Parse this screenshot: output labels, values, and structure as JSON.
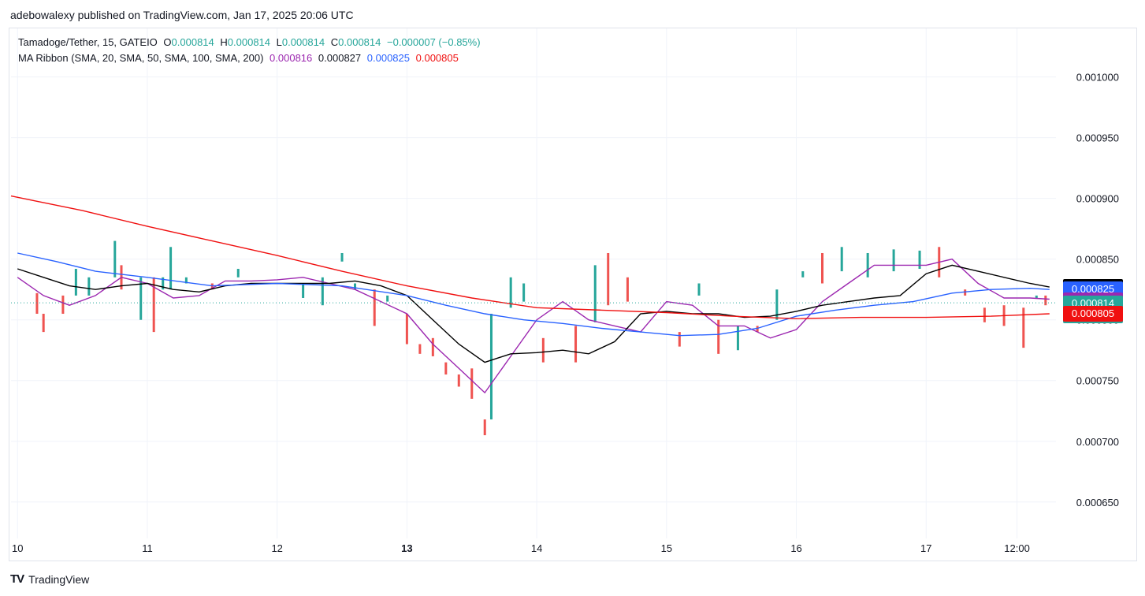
{
  "header": {
    "published": "adebowalexy published on TradingView.com, Jan 17, 2025 20:06 UTC"
  },
  "legend": {
    "symbol": "Tamadoge/Tether, 15, GATEIO",
    "o_label": "O",
    "o": "0.000814",
    "h_label": "H",
    "h": "0.000814",
    "l_label": "L",
    "l": "0.000814",
    "c_label": "C",
    "c": "0.000814",
    "change": "−0.000007 (−0.85%)",
    "ma_label": "MA Ribbon (SMA, 20, SMA, 50, SMA, 100, SMA, 200)",
    "ma20": "0.000816",
    "ma50": "0.000827",
    "ma100": "0.000825",
    "ma200": "0.000805"
  },
  "price_tags": [
    {
      "value": "0.000827",
      "extra": "",
      "color": "#000000",
      "price": 0.000827
    },
    {
      "value": "0.000825",
      "extra": "",
      "color": "#2962ff",
      "price": 0.000825
    },
    {
      "value": "0.000816",
      "extra": "",
      "color": "#9c27b0",
      "price": 0.000816
    },
    {
      "value": "0.000814",
      "extra": "08:10",
      "color": "#26a69a",
      "price": 0.000814
    },
    {
      "value": "0.000805",
      "extra": "",
      "color": "#f01010",
      "price": 0.000805
    }
  ],
  "footer": {
    "brand": "TradingView"
  },
  "colors": {
    "up": "#26a69a",
    "down": "#ef5350",
    "ma20": "#9c27b0",
    "ma50": "#000000",
    "ma100": "#2962ff",
    "ma200": "#f01010",
    "grid": "#f0f3fa"
  },
  "chart_data": {
    "type": "line",
    "title": "Tamadoge/Tether, 15, GATEIO",
    "ylim": [
      0.00062,
      0.00104
    ],
    "y_ticks": [
      "0.001000",
      "0.000950",
      "0.000900",
      "0.000850",
      "0.000800",
      "0.000750",
      "0.000700",
      "0.000650"
    ],
    "x_ticks": [
      "10",
      "11",
      "12",
      "13",
      "14",
      "15",
      "16",
      "17",
      "12:00"
    ],
    "x_tick_pos": [
      0,
      1,
      2,
      3,
      4,
      5,
      6,
      7,
      7.7
    ],
    "x_range": [
      -0.05,
      8.0
    ],
    "grid": true,
    "last_price": 0.000814,
    "series": [
      {
        "name": "SMA 20",
        "x": [
          0,
          0.2,
          0.4,
          0.6,
          0.8,
          1.0,
          1.2,
          1.4,
          1.6,
          1.8,
          2.0,
          2.2,
          2.4,
          2.6,
          2.8,
          3.0,
          3.2,
          3.4,
          3.6,
          3.8,
          4.0,
          4.2,
          4.4,
          4.6,
          4.8,
          5.0,
          5.2,
          5.4,
          5.6,
          5.8,
          6.0,
          6.2,
          6.4,
          6.6,
          6.8,
          7.0,
          7.2,
          7.4,
          7.6,
          7.8,
          7.95
        ],
        "values": [
          0.000835,
          0.00082,
          0.000812,
          0.00082,
          0.000835,
          0.00083,
          0.000818,
          0.00082,
          0.000832,
          0.000832,
          0.000833,
          0.000835,
          0.00083,
          0.000825,
          0.000815,
          0.000805,
          0.00078,
          0.00076,
          0.00074,
          0.00077,
          0.0008,
          0.000815,
          0.0008,
          0.000795,
          0.00079,
          0.000815,
          0.000812,
          0.000795,
          0.000795,
          0.000785,
          0.000792,
          0.000815,
          0.00083,
          0.000845,
          0.000845,
          0.000845,
          0.00085,
          0.00083,
          0.000818,
          0.000818,
          0.000817
        ]
      },
      {
        "name": "SMA 50",
        "x": [
          0,
          0.2,
          0.4,
          0.6,
          0.8,
          1.0,
          1.2,
          1.4,
          1.6,
          1.8,
          2.0,
          2.2,
          2.4,
          2.6,
          2.8,
          3.0,
          3.2,
          3.4,
          3.6,
          3.8,
          4.0,
          4.2,
          4.4,
          4.6,
          4.8,
          5.0,
          5.2,
          5.4,
          5.6,
          5.8,
          6.0,
          6.2,
          6.4,
          6.6,
          6.8,
          7.0,
          7.2,
          7.4,
          7.6,
          7.8,
          7.95
        ],
        "values": [
          0.000842,
          0.000835,
          0.000828,
          0.000825,
          0.000828,
          0.00083,
          0.000825,
          0.000823,
          0.000828,
          0.00083,
          0.00083,
          0.00083,
          0.00083,
          0.000832,
          0.000828,
          0.00082,
          0.0008,
          0.00078,
          0.000765,
          0.000772,
          0.000773,
          0.000775,
          0.000772,
          0.000782,
          0.000805,
          0.000807,
          0.000805,
          0.000805,
          0.000802,
          0.000803,
          0.000807,
          0.000812,
          0.000815,
          0.000818,
          0.00082,
          0.000838,
          0.000845,
          0.00084,
          0.000835,
          0.00083,
          0.000827
        ]
      },
      {
        "name": "SMA 100",
        "x": [
          0,
          0.3,
          0.6,
          1.0,
          1.5,
          2.0,
          2.5,
          3.0,
          3.3,
          3.6,
          3.9,
          4.2,
          4.5,
          4.8,
          5.1,
          5.4,
          5.7,
          6.0,
          6.3,
          6.6,
          6.9,
          7.2,
          7.5,
          7.8,
          7.95
        ],
        "values": [
          0.000855,
          0.000848,
          0.00084,
          0.000835,
          0.000828,
          0.00083,
          0.000828,
          0.00082,
          0.000812,
          0.000805,
          0.0008,
          0.000797,
          0.000793,
          0.00079,
          0.000787,
          0.000788,
          0.000793,
          0.000803,
          0.000808,
          0.000812,
          0.000815,
          0.000822,
          0.000825,
          0.000826,
          0.000825
        ]
      },
      {
        "name": "SMA 200",
        "x": [
          -0.05,
          0.5,
          1.0,
          1.5,
          2.0,
          2.5,
          3.0,
          3.5,
          4.0,
          4.5,
          5.0,
          5.5,
          6.0,
          6.5,
          7.0,
          7.5,
          7.95
        ],
        "values": [
          0.000902,
          0.00089,
          0.000877,
          0.000865,
          0.000853,
          0.00084,
          0.000828,
          0.000818,
          0.00081,
          0.000808,
          0.000806,
          0.000803,
          0.000801,
          0.000802,
          0.000802,
          0.000803,
          0.000805
        ]
      }
    ],
    "candles": [
      {
        "x": 0.15,
        "o": 0.000822,
        "c": 0.000805
      },
      {
        "x": 0.2,
        "o": 0.000805,
        "c": 0.00079
      },
      {
        "x": 0.35,
        "o": 0.00082,
        "c": 0.000805
      },
      {
        "x": 0.45,
        "o": 0.00082,
        "c": 0.000842
      },
      {
        "x": 0.55,
        "o": 0.00082,
        "c": 0.000835
      },
      {
        "x": 0.75,
        "o": 0.000835,
        "c": 0.000865
      },
      {
        "x": 0.8,
        "o": 0.000845,
        "c": 0.000825
      },
      {
        "x": 0.95,
        "o": 0.0008,
        "c": 0.000835
      },
      {
        "x": 1.05,
        "o": 0.000835,
        "c": 0.00079
      },
      {
        "x": 1.12,
        "o": 0.000825,
        "c": 0.000835
      },
      {
        "x": 1.18,
        "o": 0.000825,
        "c": 0.00086
      },
      {
        "x": 1.3,
        "o": 0.00083,
        "c": 0.000835
      },
      {
        "x": 1.5,
        "o": 0.00083,
        "c": 0.000825
      },
      {
        "x": 1.7,
        "o": 0.000835,
        "c": 0.000842
      },
      {
        "x": 2.2,
        "o": 0.000818,
        "c": 0.00083
      },
      {
        "x": 2.35,
        "o": 0.000812,
        "c": 0.000835
      },
      {
        "x": 2.5,
        "o": 0.000848,
        "c": 0.000855
      },
      {
        "x": 2.6,
        "o": 0.000825,
        "c": 0.00083
      },
      {
        "x": 2.75,
        "o": 0.000825,
        "c": 0.000795
      },
      {
        "x": 2.85,
        "o": 0.000815,
        "c": 0.00082
      },
      {
        "x": 3.0,
        "o": 0.000805,
        "c": 0.00078
      },
      {
        "x": 3.1,
        "o": 0.00078,
        "c": 0.000772
      },
      {
        "x": 3.2,
        "o": 0.000785,
        "c": 0.00077
      },
      {
        "x": 3.3,
        "o": 0.000765,
        "c": 0.000755
      },
      {
        "x": 3.4,
        "o": 0.000755,
        "c": 0.000745
      },
      {
        "x": 3.5,
        "o": 0.00076,
        "c": 0.000735
      },
      {
        "x": 3.6,
        "o": 0.000718,
        "c": 0.000705
      },
      {
        "x": 3.65,
        "o": 0.000718,
        "c": 0.000805
      },
      {
        "x": 3.8,
        "o": 0.00081,
        "c": 0.000835
      },
      {
        "x": 3.9,
        "o": 0.000815,
        "c": 0.00083
      },
      {
        "x": 4.05,
        "o": 0.000785,
        "c": 0.000765
      },
      {
        "x": 4.3,
        "o": 0.000795,
        "c": 0.000765
      },
      {
        "x": 4.45,
        "o": 0.000798,
        "c": 0.000845
      },
      {
        "x": 4.55,
        "o": 0.000855,
        "c": 0.000812
      },
      {
        "x": 4.7,
        "o": 0.000835,
        "c": 0.000815
      },
      {
        "x": 5.1,
        "o": 0.00079,
        "c": 0.000778
      },
      {
        "x": 5.25,
        "o": 0.00082,
        "c": 0.00083
      },
      {
        "x": 5.4,
        "o": 0.0008,
        "c": 0.000772
      },
      {
        "x": 5.55,
        "o": 0.000775,
        "c": 0.000795
      },
      {
        "x": 5.7,
        "o": 0.000795,
        "c": 0.00079
      },
      {
        "x": 5.85,
        "o": 0.0008,
        "c": 0.000825
      },
      {
        "x": 6.05,
        "o": 0.000835,
        "c": 0.00084
      },
      {
        "x": 6.2,
        "o": 0.000855,
        "c": 0.00083
      },
      {
        "x": 6.35,
        "o": 0.00084,
        "c": 0.00086
      },
      {
        "x": 6.55,
        "o": 0.000835,
        "c": 0.000855
      },
      {
        "x": 6.75,
        "o": 0.00084,
        "c": 0.000858
      },
      {
        "x": 6.95,
        "o": 0.000842,
        "c": 0.000857
      },
      {
        "x": 7.1,
        "o": 0.00086,
        "c": 0.000835
      },
      {
        "x": 7.3,
        "o": 0.000825,
        "c": 0.00082
      },
      {
        "x": 7.45,
        "o": 0.00081,
        "c": 0.000798
      },
      {
        "x": 7.6,
        "o": 0.000812,
        "c": 0.000795
      },
      {
        "x": 7.75,
        "o": 0.00081,
        "c": 0.000777
      },
      {
        "x": 7.85,
        "o": 0.000818,
        "c": 0.00082
      },
      {
        "x": 7.92,
        "o": 0.00082,
        "c": 0.000812
      }
    ]
  }
}
